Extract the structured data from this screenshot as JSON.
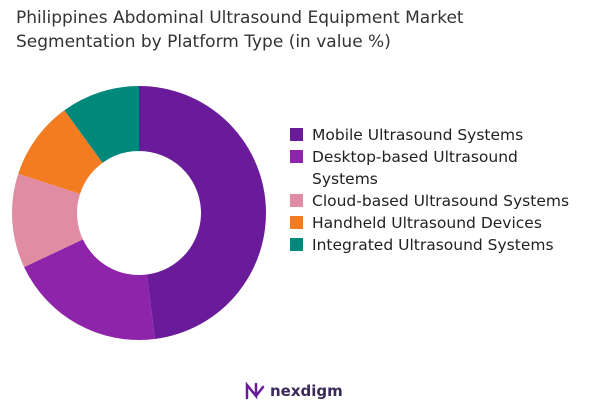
{
  "chart_data": {
    "type": "pie",
    "title": "Philippines Abdominal Ultrasound Equipment Market Segmentation by Platform Type (in value %)",
    "categories": [
      "Mobile Ultrasound Systems",
      "Desktop-based Ultrasound Systems",
      "Cloud-based Ultrasound Systems",
      "Handheld Ultrasound Devices",
      "Integrated Ultrasound Systems"
    ],
    "values": [
      48,
      20,
      12,
      10,
      10
    ],
    "colors": [
      "#6a1b9a",
      "#8e24aa",
      "#e08ca3",
      "#f47c20",
      "#00897b"
    ],
    "donut": true,
    "legend": "right"
  },
  "footer": {
    "logo_text": "nexdigm"
  }
}
